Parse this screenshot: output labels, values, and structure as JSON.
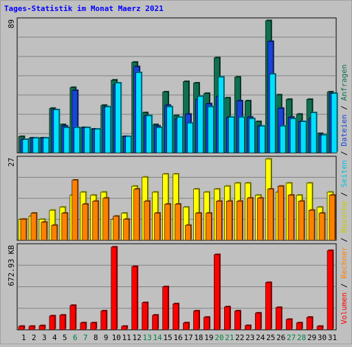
{
  "chart_data": {
    "type": "bar",
    "title": "Tages-Statistik im Monat Maerz 2021",
    "categories": [
      "1",
      "2",
      "3",
      "4",
      "5",
      "6",
      "7",
      "8",
      "9",
      "10",
      "11",
      "12",
      "13",
      "14",
      "15",
      "16",
      "17",
      "18",
      "19",
      "20",
      "21",
      "22",
      "23",
      "24",
      "25",
      "26",
      "27",
      "28",
      "29",
      "30",
      "31"
    ],
    "weekend_days": [
      "6",
      "7",
      "13",
      "14",
      "20",
      "21",
      "27",
      "28"
    ],
    "panels": [
      {
        "name": "top",
        "ymax_label": "89",
        "ymax": 89,
        "series": [
          {
            "name": "Anfragen",
            "color": "#107050",
            "values": [
              11,
              10,
              10,
              30,
              19,
              44,
              17,
              16,
              32,
              49,
              11,
              61,
              27,
              19,
              41,
              25,
              48,
              47,
              40,
              64,
              37,
              51,
              35,
              21,
              89,
              39,
              36,
              26,
              36,
              13,
              41
            ]
          },
          {
            "name": "Dateien",
            "color": "#1844d8",
            "values": [
              9,
              10,
              10,
              29,
              18,
              42,
              17,
              16,
              31,
              46,
              11,
              58,
              25,
              18,
              32,
              23,
              26,
              36,
              33,
              38,
              24,
              35,
              24,
              18,
              75,
              30,
              24,
              21,
              23,
              12,
              40
            ]
          },
          {
            "name": "Seiten",
            "color": "#00e0ff",
            "values": [
              9,
              10,
              10,
              29,
              17,
              17,
              17,
              16,
              31,
              47,
              11,
              54,
              25,
              17,
              31,
              24,
              20,
              38,
              31,
              51,
              24,
              24,
              23,
              18,
              53,
              18,
              23,
              21,
              27,
              12,
              40
            ]
          }
        ]
      },
      {
        "name": "middle",
        "ymax_label": "27",
        "ymax": 27,
        "series": [
          {
            "name": "Besuche",
            "color": "#ffff00",
            "values": [
              7,
              8,
              7,
              10,
              11,
              15,
              16,
              15,
              16,
              7,
              9,
              18,
              21,
              16,
              22,
              22,
              11,
              17,
              16,
              17,
              18,
              19,
              19,
              15,
              27,
              16,
              19,
              15,
              19,
              11,
              16
            ]
          },
          {
            "name": "Rechner",
            "color": "#ff8000",
            "values": [
              7,
              9,
              6,
              5,
              9,
              20,
              12,
              13,
              14,
              8,
              7,
              17,
              13,
              9,
              12,
              12,
              5,
              9,
              9,
              13,
              13,
              13,
              14,
              14,
              17,
              18,
              15,
              13,
              10,
              9,
              15
            ]
          }
        ]
      },
      {
        "name": "bottom",
        "ymax_label": "672.93 KB",
        "ymax": 672.93,
        "series": [
          {
            "name": "Volumen",
            "color": "#ff0000",
            "values": [
              28,
              28,
              33,
              112,
              118,
              197,
              56,
              56,
              152,
              668,
              28,
              511,
              219,
              118,
              348,
              210,
              56,
              152,
              101,
              607,
              185,
              152,
              34,
              135,
              382,
              180,
              84,
              56,
              101,
              28,
              640
            ]
          }
        ]
      }
    ],
    "side_legend": {
      "items": [
        {
          "label": "Volumen",
          "color": "#ff0000"
        },
        {
          "label": "Rechner",
          "color": "#ff8000"
        },
        {
          "label": "Besuche",
          "color": "#c8c800"
        },
        {
          "label": "Seiten",
          "color": "#00c0e0"
        },
        {
          "label": "Dateien",
          "color": "#1844d8"
        },
        {
          "label": "Anfragen",
          "color": "#107050"
        }
      ],
      "separator": "/"
    },
    "colors": {
      "title": "#0000ff",
      "weekday_label": "#000000",
      "weekend_label": "#008040",
      "grid": "#808080",
      "panel_bg": "#c0c0c0"
    }
  }
}
